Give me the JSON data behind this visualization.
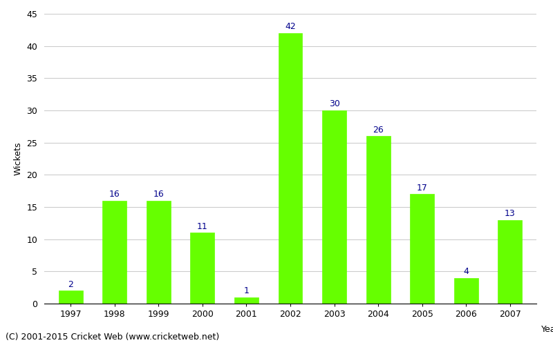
{
  "years": [
    "1997",
    "1998",
    "1999",
    "2000",
    "2001",
    "2002",
    "2003",
    "2004",
    "2005",
    "2006",
    "2007"
  ],
  "wickets": [
    2,
    16,
    16,
    11,
    1,
    42,
    30,
    26,
    17,
    4,
    13
  ],
  "bar_color": "#66ff00",
  "bar_edge_color": "#66ff00",
  "label_color": "#00008B",
  "ylabel": "Wickets",
  "xlabel_rotated": "Year",
  "ylim": [
    0,
    45
  ],
  "yticks": [
    0,
    5,
    10,
    15,
    20,
    25,
    30,
    35,
    40,
    45
  ],
  "background_color": "#ffffff",
  "grid_color": "#cccccc",
  "footnote": "(C) 2001-2015 Cricket Web (www.cricketweb.net)",
  "label_fontsize": 9,
  "axis_label_fontsize": 9,
  "tick_fontsize": 9,
  "footnote_fontsize": 9
}
